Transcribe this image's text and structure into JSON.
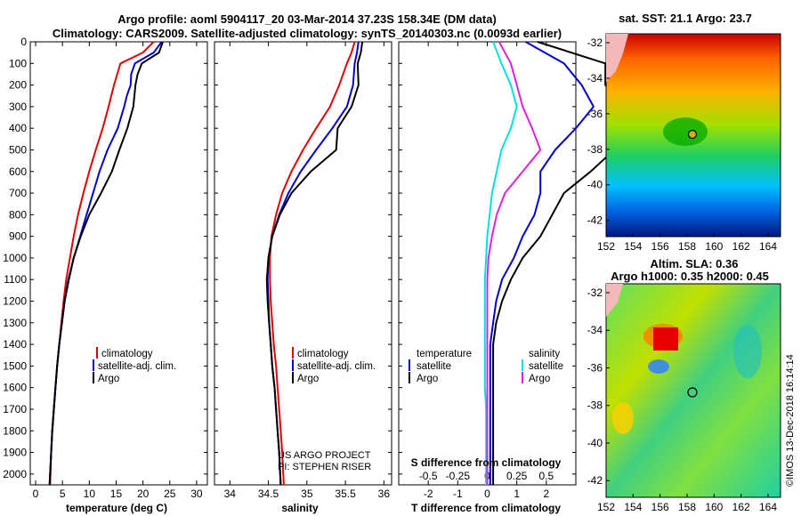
{
  "header": {
    "title_line1": "Argo profile: aoml 5904117_20 03-Mar-2014 37.23S 158.34E (DM data)",
    "title_line2": "Climatology: CARS2009. Satellite-adjusted climatology: synTS_20140303.nc (0.0093d earlier)"
  },
  "colors": {
    "climatology": "#e00000",
    "satellite": "#0000cc",
    "argo": "#000000",
    "sat_salinity": "#00e0e0",
    "argo_salinity": "#e020e0"
  },
  "panels": {
    "temperature": {
      "xlabel": "temperature (deg C)",
      "xticks": [
        "0",
        "5",
        "10",
        "15",
        "20",
        "25",
        "30"
      ],
      "yticks": [
        "0",
        "100",
        "200",
        "300",
        "400",
        "500",
        "600",
        "700",
        "800",
        "900",
        "1000",
        "1100",
        "1200",
        "1300",
        "1400",
        "1500",
        "1600",
        "1700",
        "1800",
        "1900",
        "2000"
      ],
      "legend": [
        "climatology",
        "satellite-adj. clim.",
        "Argo"
      ]
    },
    "salinity": {
      "xlabel": "salinity",
      "xticks": [
        "34",
        "34.5",
        "35",
        "35.5",
        "36"
      ],
      "legend": [
        "climatology",
        "satellite-adj. clim.",
        "Argo"
      ],
      "credit1": "US ARGO PROJECT",
      "credit2": "PI: STEPHEN RISER"
    },
    "difference": {
      "xlabel": "T difference from climatology",
      "xticks": [
        "-2",
        "-1",
        "0",
        "1",
        "2"
      ],
      "s_label": "S difference from climatology",
      "s_ticks": [
        "-0.5",
        "-0.25",
        "0",
        "0.25",
        "0.5"
      ],
      "legend_t_title": "temperature",
      "legend_s_title": "salinity",
      "legend_t": [
        "satellite",
        "Argo"
      ],
      "legend_s": [
        "satellite",
        "Argo"
      ]
    }
  },
  "maps": {
    "sst": {
      "title": "sat. SST: 21.1 Argo: 23.7",
      "yticks": [
        "-32",
        "-34",
        "-36",
        "-38",
        "-40",
        "-42"
      ],
      "xticks": [
        "152",
        "154",
        "156",
        "158",
        "160",
        "162",
        "164"
      ]
    },
    "sla": {
      "title1": "Altim. SLA: 0.36",
      "title2": "Argo h1000: 0.35 h2000: 0.45",
      "yticks": [
        "-32",
        "-34",
        "-36",
        "-38",
        "-40",
        "-42"
      ],
      "xticks": [
        "152",
        "154",
        "156",
        "158",
        "160",
        "162",
        "164"
      ],
      "watermark": "©IMOS 13-Dec-2018 16:14:14"
    }
  },
  "chart_data": [
    {
      "type": "line",
      "title": "temperature",
      "xlabel": "temperature (deg C)",
      "ylabel": "",
      "xlim": [
        -1,
        32
      ],
      "ylim": [
        2050,
        0
      ],
      "series": [
        {
          "name": "climatology",
          "depth": [
            0,
            50,
            100,
            200,
            300,
            400,
            500,
            600,
            700,
            800,
            900,
            1000,
            1100,
            1200,
            1300,
            1400,
            1500,
            1600,
            1700,
            1800,
            1900,
            2050
          ],
          "values": [
            22.0,
            20.0,
            15.8,
            14.6,
            13.6,
            12.5,
            11.2,
            10.0,
            8.9,
            7.9,
            7.1,
            6.4,
            5.7,
            5.2,
            4.8,
            4.4,
            4.0,
            3.7,
            3.4,
            3.1,
            2.9,
            2.7
          ]
        },
        {
          "name": "satellite-adj. clim.",
          "depth": [
            0,
            50,
            100,
            150,
            200,
            250,
            300,
            400,
            500,
            600,
            700,
            800,
            900,
            1000,
            1100,
            1200,
            1300,
            1400,
            1500,
            1600,
            1700,
            1800,
            1900,
            2050
          ],
          "values": [
            23.5,
            22.0,
            18.5,
            17.8,
            17.7,
            17.0,
            16.5,
            15.3,
            13.4,
            11.9,
            10.7,
            9.5,
            8.3,
            7.1,
            6.1,
            5.4,
            4.9,
            4.4,
            4.0,
            3.7,
            3.4,
            3.1,
            2.9,
            2.6
          ]
        },
        {
          "name": "Argo",
          "depth": [
            0,
            50,
            100,
            150,
            200,
            300,
            400,
            500,
            600,
            700,
            800,
            900,
            1000,
            1100,
            1200,
            1300,
            1400,
            1500,
            1600,
            1700,
            1800,
            1900,
            2050
          ],
          "values": [
            23.7,
            23.0,
            19.8,
            19.0,
            18.6,
            18.2,
            17.1,
            15.6,
            14.2,
            12.2,
            10.0,
            8.4,
            7.1,
            6.2,
            5.4,
            4.9,
            4.4,
            4.0,
            3.7,
            3.4,
            3.1,
            2.9,
            2.6
          ]
        }
      ]
    },
    {
      "type": "line",
      "title": "salinity",
      "xlabel": "salinity",
      "ylabel": "",
      "xlim": [
        33.8,
        36.1
      ],
      "ylim": [
        2050,
        0
      ],
      "series": [
        {
          "name": "climatology",
          "depth": [
            0,
            50,
            100,
            200,
            300,
            400,
            500,
            600,
            700,
            800,
            900,
            1000,
            1100,
            1200,
            1300,
            1400,
            1500,
            1600,
            1700,
            1800,
            1900,
            2050
          ],
          "values": [
            35.62,
            35.58,
            35.52,
            35.42,
            35.3,
            35.12,
            34.95,
            34.8,
            34.68,
            34.6,
            34.54,
            34.52,
            34.52,
            34.53,
            34.55,
            34.57,
            34.6,
            34.62,
            34.64,
            34.66,
            34.68,
            34.7
          ]
        },
        {
          "name": "satellite-adj. clim.",
          "depth": [
            0,
            50,
            100,
            200,
            300,
            400,
            500,
            600,
            700,
            800,
            900,
            1000,
            1100,
            1200,
            1300,
            1400,
            1500,
            1600,
            1700,
            1800,
            1900,
            2050
          ],
          "values": [
            35.67,
            35.65,
            35.62,
            35.6,
            35.52,
            35.33,
            35.12,
            34.92,
            34.76,
            34.64,
            34.55,
            34.5,
            34.49,
            34.5,
            34.51,
            34.53,
            34.55,
            34.58,
            34.6,
            34.62,
            34.64,
            34.66
          ]
        },
        {
          "name": "Argo",
          "depth": [
            0,
            50,
            100,
            200,
            300,
            400,
            500,
            600,
            700,
            800,
            900,
            1000,
            1100,
            1200,
            1300,
            1400,
            1500,
            1600,
            1700,
            1800,
            1900,
            2050
          ],
          "values": [
            35.72,
            35.7,
            35.66,
            35.67,
            35.58,
            35.4,
            35.38,
            35.05,
            34.8,
            34.65,
            34.55,
            34.5,
            34.48,
            34.49,
            34.51,
            34.53,
            34.55,
            34.58,
            34.6,
            34.62,
            34.64,
            34.66
          ]
        }
      ]
    },
    {
      "type": "line",
      "title": "difference from climatology",
      "xlabel": "T difference from climatology",
      "ylabel": "",
      "xlim": [
        -3,
        3
      ],
      "ylim": [
        2050,
        0
      ],
      "series": [
        {
          "name": "temperature satellite",
          "depth": [
            0,
            100,
            200,
            300,
            400,
            500,
            600,
            700,
            800,
            900,
            1000,
            1100,
            1200,
            1300,
            1400,
            1500,
            1600,
            1700,
            1800,
            1900,
            2050
          ],
          "values": [
            1.3,
            2.6,
            3.2,
            3.6,
            3.0,
            2.3,
            1.8,
            1.8,
            1.6,
            1.2,
            0.9,
            0.5,
            0.3,
            0.2,
            0.1,
            0.1,
            0.1,
            0.1,
            0.1,
            0.1,
            0.1
          ]
        },
        {
          "name": "temperature Argo",
          "depth": [
            0,
            100,
            200,
            300,
            400,
            500,
            600,
            700,
            800,
            900,
            1000,
            1100,
            1200,
            1300,
            1400,
            1500,
            1600,
            1700,
            1800,
            1900,
            2050
          ],
          "values": [
            1.7,
            4.0,
            4.0,
            4.6,
            4.6,
            4.3,
            3.5,
            2.6,
            2.2,
            1.8,
            1.2,
            0.8,
            0.5,
            0.3,
            0.2,
            0.2,
            0.2,
            0.2,
            0.2,
            0.2,
            0.2
          ]
        },
        {
          "name": "salinity satellite",
          "depth": [
            0,
            100,
            200,
            300,
            400,
            500,
            600,
            700,
            800,
            900,
            1000,
            1100,
            1200,
            1300,
            1400,
            1500,
            1600,
            1700,
            1800,
            1900,
            2050
          ],
          "values": [
            0.05,
            0.12,
            0.2,
            0.25,
            0.2,
            0.12,
            0.08,
            0.04,
            0.02,
            0.0,
            -0.01,
            -0.02,
            -0.02,
            -0.02,
            -0.02,
            -0.02,
            -0.02,
            -0.01,
            -0.01,
            -0.01,
            -0.01
          ]
        },
        {
          "name": "salinity Argo",
          "depth": [
            0,
            100,
            200,
            300,
            400,
            500,
            600,
            700,
            800,
            900,
            1000,
            1100,
            1200,
            1300,
            1400,
            1500,
            1600,
            1700,
            1800,
            1900,
            2050
          ],
          "values": [
            0.1,
            0.2,
            0.25,
            0.3,
            0.38,
            0.45,
            0.3,
            0.15,
            0.08,
            0.04,
            0.01,
            0.0,
            0.0,
            0.0,
            0.0,
            0.0,
            0.0,
            0.0,
            0.0,
            0.0,
            0.0
          ]
        }
      ]
    }
  ]
}
